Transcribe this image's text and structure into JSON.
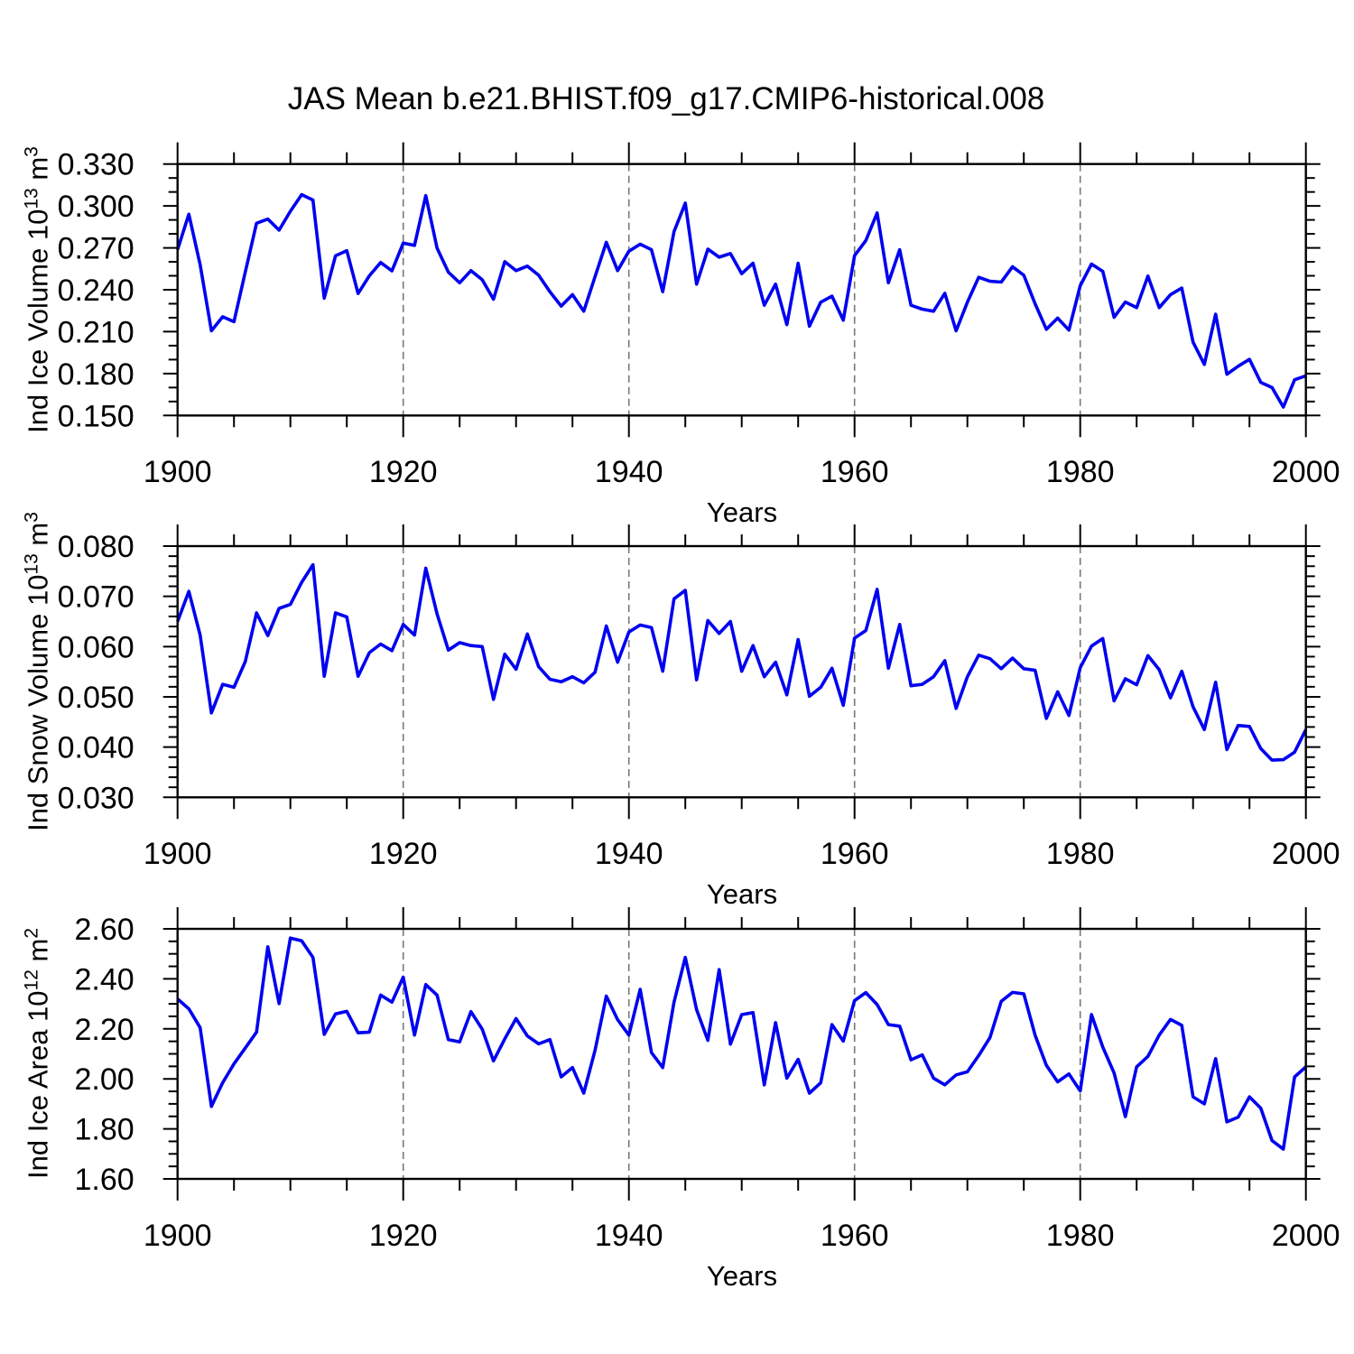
{
  "title": "JAS Mean b.e21.BHIST.f09_g17.CMIP6-historical.008",
  "colors": {
    "line": "#0000f0",
    "grid": "#777777",
    "frame": "#000000",
    "text": "#000000"
  },
  "chart_data": [
    {
      "type": "line",
      "name": "ind-ice-volume",
      "ylabel": {
        "pre": "Ind Ice Volume 10",
        "sup1": "13",
        "mid": " m",
        "sup2": "3"
      },
      "xlabel": "Years",
      "xlim": [
        1900,
        2000
      ],
      "xtick_step": 20,
      "xtick_minor": 5,
      "xtick_labels": [
        "1900",
        "1920",
        "1940",
        "1960",
        "1980",
        "2000"
      ],
      "ylim": [
        0.15,
        0.33
      ],
      "ytick_step": 0.03,
      "ytick_minor": 0.01,
      "ytick_labels": [
        "0.150",
        "0.180",
        "0.210",
        "0.240",
        "0.270",
        "0.300",
        "0.330"
      ],
      "gridlines": [
        1920,
        1940,
        1960,
        1980
      ],
      "x_start_year": 1900,
      "values": [
        0.2687,
        0.2941,
        0.258,
        0.2106,
        0.2207,
        0.2171,
        0.2526,
        0.2876,
        0.2906,
        0.2827,
        0.2962,
        0.3081,
        0.3042,
        0.234,
        0.2643,
        0.268,
        0.2373,
        0.25,
        0.2595,
        0.2535,
        0.2734,
        0.2718,
        0.3074,
        0.2698,
        0.2526,
        0.245,
        0.2537,
        0.2472,
        0.2332,
        0.2601,
        0.2537,
        0.2569,
        0.2504,
        0.2386,
        0.2283,
        0.2365,
        0.2246,
        0.2494,
        0.274,
        0.2537,
        0.2676,
        0.2726,
        0.2687,
        0.2386,
        0.2816,
        0.302,
        0.244,
        0.2691,
        0.2633,
        0.2659,
        0.2515,
        0.259,
        0.2289,
        0.2441,
        0.215,
        0.259,
        0.2139,
        0.2311,
        0.2354,
        0.2182,
        0.2644,
        0.2752,
        0.295,
        0.245,
        0.2687,
        0.2289,
        0.2261,
        0.2246,
        0.2375,
        0.2106,
        0.2311,
        0.2489,
        0.2461,
        0.2455,
        0.2565,
        0.2504,
        0.23,
        0.2117,
        0.2197,
        0.2111,
        0.2429,
        0.2584,
        0.2532,
        0.2203,
        0.2312,
        0.2272,
        0.2498,
        0.2272,
        0.2365,
        0.2412,
        0.2025,
        0.1866,
        0.2225,
        0.1795,
        0.1853,
        0.1902,
        0.1737,
        0.17,
        0.156,
        0.1756,
        0.1784
      ]
    },
    {
      "type": "line",
      "name": "ind-snow-volume",
      "ylabel": {
        "pre": "Ind Snow Volume 10",
        "sup1": "13",
        "mid": " m",
        "sup2": "3"
      },
      "xlabel": "Years",
      "xlim": [
        1900,
        2000
      ],
      "xtick_step": 20,
      "xtick_minor": 5,
      "xtick_labels": [
        "1900",
        "1920",
        "1940",
        "1960",
        "1980",
        "2000"
      ],
      "ylim": [
        0.03,
        0.08
      ],
      "ytick_step": 0.01,
      "ytick_minor": 0.002,
      "ytick_labels": [
        "0.030",
        "0.040",
        "0.050",
        "0.060",
        "0.070",
        "0.080"
      ],
      "gridlines": [
        1920,
        1940,
        1960,
        1980
      ],
      "x_start_year": 1900,
      "values": [
        0.065,
        0.071,
        0.0623,
        0.0468,
        0.0525,
        0.0519,
        0.057,
        0.0667,
        0.0622,
        0.0676,
        0.0684,
        0.0728,
        0.0763,
        0.0541,
        0.0667,
        0.0659,
        0.0541,
        0.0588,
        0.0605,
        0.0592,
        0.0644,
        0.0623,
        0.0756,
        0.0665,
        0.0593,
        0.0608,
        0.0602,
        0.06,
        0.0495,
        0.0585,
        0.0555,
        0.0625,
        0.056,
        0.0535,
        0.053,
        0.054,
        0.0528,
        0.0549,
        0.0641,
        0.0569,
        0.0629,
        0.0643,
        0.0638,
        0.0551,
        0.0695,
        0.0712,
        0.0534,
        0.0652,
        0.0626,
        0.065,
        0.0551,
        0.0602,
        0.054,
        0.0569,
        0.0504,
        0.0614,
        0.0501,
        0.0519,
        0.0557,
        0.0483,
        0.0617,
        0.0632,
        0.0714,
        0.0557,
        0.0644,
        0.0522,
        0.0525,
        0.054,
        0.0572,
        0.0477,
        0.054,
        0.0583,
        0.0576,
        0.0556,
        0.0577,
        0.0556,
        0.0553,
        0.0457,
        0.051,
        0.0463,
        0.0558,
        0.0601,
        0.0616,
        0.0492,
        0.0536,
        0.0524,
        0.0582,
        0.0554,
        0.0498,
        0.0551,
        0.048,
        0.0435,
        0.0529,
        0.0395,
        0.0443,
        0.0441,
        0.0397,
        0.0374,
        0.0375,
        0.039,
        0.0435
      ]
    },
    {
      "type": "line",
      "name": "ind-ice-area",
      "ylabel": {
        "pre": "Ind Ice Area 10",
        "sup1": "12",
        "mid": " m",
        "sup2": "2"
      },
      "xlabel": "Years",
      "xlim": [
        1900,
        2000
      ],
      "xtick_step": 20,
      "xtick_minor": 5,
      "xtick_labels": [
        "1900",
        "1920",
        "1940",
        "1960",
        "1980",
        "2000"
      ],
      "ylim": [
        1.6,
        2.6
      ],
      "ytick_step": 0.2,
      "ytick_minor": 0.05,
      "ytick_labels": [
        "1.60",
        "1.80",
        "2.00",
        "2.20",
        "2.40",
        "2.60"
      ],
      "gridlines": [
        1920,
        1940,
        1960,
        1980
      ],
      "x_start_year": 1900,
      "values": [
        2.32,
        2.28,
        2.205,
        1.89,
        1.985,
        2.06,
        2.123,
        2.187,
        2.528,
        2.301,
        2.563,
        2.552,
        2.486,
        2.178,
        2.26,
        2.27,
        2.184,
        2.187,
        2.335,
        2.307,
        2.407,
        2.175,
        2.377,
        2.335,
        2.157,
        2.148,
        2.269,
        2.199,
        2.072,
        2.16,
        2.241,
        2.172,
        2.14,
        2.157,
        2.008,
        2.045,
        1.943,
        2.114,
        2.331,
        2.237,
        2.175,
        2.358,
        2.105,
        2.045,
        2.307,
        2.486,
        2.277,
        2.154,
        2.437,
        2.139,
        2.257,
        2.265,
        1.976,
        2.225,
        2.003,
        2.078,
        1.943,
        1.984,
        2.217,
        2.151,
        2.313,
        2.345,
        2.297,
        2.217,
        2.211,
        2.076,
        2.096,
        2.003,
        1.976,
        2.016,
        2.028,
        2.093,
        2.165,
        2.31,
        2.346,
        2.34,
        2.175,
        2.054,
        1.988,
        2.02,
        1.952,
        2.257,
        2.127,
        2.024,
        1.849,
        2.048,
        2.09,
        2.175,
        2.238,
        2.214,
        1.928,
        1.9,
        2.081,
        1.828,
        1.847,
        1.928,
        1.883,
        1.753,
        1.719,
        2.008,
        2.048
      ]
    }
  ]
}
